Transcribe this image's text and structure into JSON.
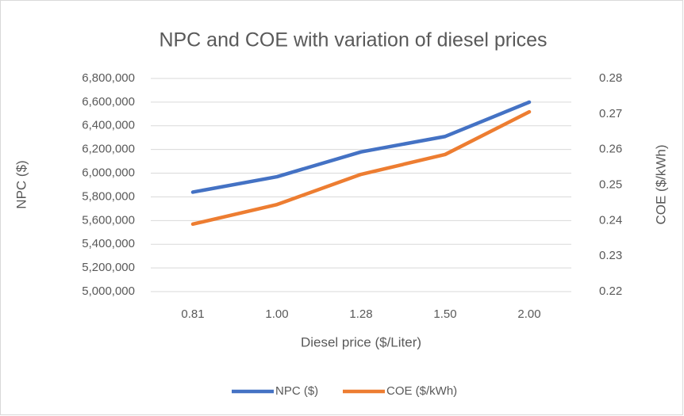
{
  "chart_data": {
    "type": "line",
    "title": "NPC and COE with variation of diesel prices",
    "x_label": "Diesel price ($/Liter)",
    "y_label": "NPC ($)",
    "y2_label": "COE ($/kWh)",
    "categories": [
      "0.81",
      "1.00",
      "1.28",
      "1.50",
      "2.00"
    ],
    "series": [
      {
        "name": "NPC ($)",
        "color": "#4472c4",
        "values": [
          5840000,
          5970000,
          6180000,
          6310000,
          6600000
        ]
      },
      {
        "name": "COE ($/kWh)",
        "color": "#ed7d31",
        "axis": "y2",
        "values": [
          0.239,
          0.2445,
          0.253,
          0.2586,
          0.2706
        ]
      }
    ],
    "ylim": [
      5000000,
      6800000
    ],
    "yticks": [
      {
        "value": 5000000,
        "label": "5,000,000"
      },
      {
        "value": 5200000,
        "label": "5,200,000"
      },
      {
        "value": 5400000,
        "label": "5,400,000"
      },
      {
        "value": 5600000,
        "label": "5,600,000"
      },
      {
        "value": 5800000,
        "label": "5,800,000"
      },
      {
        "value": 6000000,
        "label": "6,000,000"
      },
      {
        "value": 6200000,
        "label": "6,200,000"
      },
      {
        "value": 6400000,
        "label": "6,400,000"
      },
      {
        "value": 6600000,
        "label": "6,600,000"
      },
      {
        "value": 6800000,
        "label": "6,800,000"
      }
    ],
    "y2lim": [
      0.22,
      0.28
    ],
    "y2ticks": [
      0.22,
      0.23,
      0.24,
      0.25,
      0.26,
      0.27,
      0.28
    ],
    "grid": true,
    "legend": "bottom"
  }
}
